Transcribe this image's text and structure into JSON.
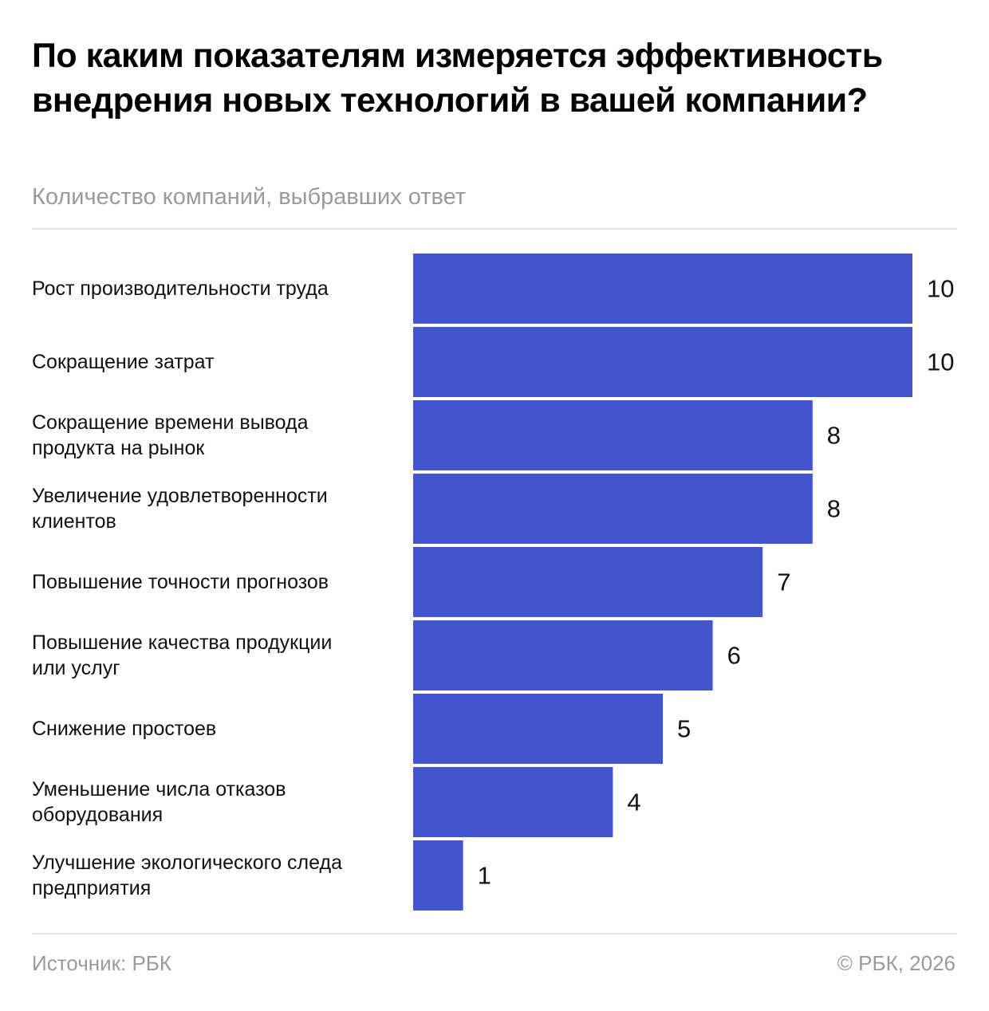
{
  "header": {
    "title": "По каким показателям измеряется эффективность внедрения новых технологий в вашей компании?",
    "subtitle": "Количество компаний, выбравших ответ"
  },
  "footer": {
    "source": "Источник: РБК",
    "copyright": "© РБК, 2026"
  },
  "colors": {
    "bar": "#4255cc",
    "text": "#111111",
    "muted": "#9a9a9a"
  },
  "chart_data": {
    "type": "bar",
    "orientation": "horizontal",
    "title": "По каким показателям измеряется эффективность внедрения новых технологий в вашей компании?",
    "subtitle": "Количество компаний, выбравших ответ",
    "categories": [
      [
        "Рост производительности труда"
      ],
      [
        "Сокращение затрат"
      ],
      [
        "Сокращение времени вывода",
        "продукта на рынок"
      ],
      [
        "Увеличение удовлетворенности",
        "клиентов"
      ],
      [
        "Повышение точности прогнозов"
      ],
      [
        "Повышение качества продукции",
        "или услуг"
      ],
      [
        "Снижение простоев"
      ],
      [
        "Уменьшение числа отказов",
        "оборудования"
      ],
      [
        "Улучшение экологического следа",
        "предприятия"
      ]
    ],
    "values": [
      10,
      10,
      8,
      8,
      7,
      6,
      5,
      4,
      1
    ],
    "xlim": [
      0,
      10
    ],
    "grid": false,
    "data_labels": true
  }
}
